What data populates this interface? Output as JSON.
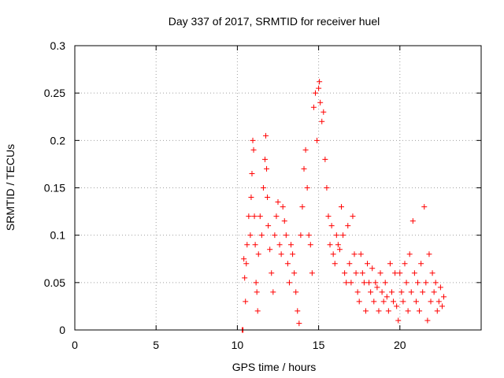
{
  "chart_data": {
    "type": "scatter",
    "title": "Day 337 of 2017, SRMTID for receiver huel",
    "xlabel": "GPS time / hours",
    "ylabel": "SRMTID / TECUs",
    "xlim": [
      0,
      25
    ],
    "ylim": [
      0,
      0.3
    ],
    "xticks": [
      0,
      5,
      10,
      15,
      20
    ],
    "yticks": [
      0,
      0.05,
      0.1,
      0.15,
      0.2,
      0.25,
      0.3
    ],
    "xtick_labels": [
      "0",
      "5",
      "10",
      "15",
      "20"
    ],
    "ytick_labels": [
      "0",
      "0.05",
      "0.1",
      "0.15",
      "0.2",
      "0.25",
      "0.3"
    ],
    "grid": true,
    "marker": "+",
    "series": [
      {
        "name": "SRMTID",
        "color": "#ff0000",
        "points": [
          [
            10.3,
            0.0
          ],
          [
            10.35,
            0.0
          ],
          [
            10.4,
            0.075
          ],
          [
            10.45,
            0.055
          ],
          [
            10.5,
            0.03
          ],
          [
            10.55,
            0.07
          ],
          [
            10.6,
            0.09
          ],
          [
            10.7,
            0.12
          ],
          [
            10.8,
            0.1
          ],
          [
            10.85,
            0.14
          ],
          [
            10.9,
            0.165
          ],
          [
            10.95,
            0.2
          ],
          [
            11.0,
            0.19
          ],
          [
            11.05,
            0.12
          ],
          [
            11.1,
            0.09
          ],
          [
            11.15,
            0.05
          ],
          [
            11.2,
            0.04
          ],
          [
            11.25,
            0.02
          ],
          [
            11.3,
            0.08
          ],
          [
            11.4,
            0.12
          ],
          [
            11.5,
            0.1
          ],
          [
            11.6,
            0.15
          ],
          [
            11.7,
            0.18
          ],
          [
            11.75,
            0.205
          ],
          [
            11.8,
            0.17
          ],
          [
            11.85,
            0.14
          ],
          [
            11.9,
            0.11
          ],
          [
            12.0,
            0.085
          ],
          [
            12.1,
            0.06
          ],
          [
            12.2,
            0.04
          ],
          [
            12.3,
            0.1
          ],
          [
            12.4,
            0.12
          ],
          [
            12.5,
            0.135
          ],
          [
            12.6,
            0.09
          ],
          [
            12.7,
            0.08
          ],
          [
            12.8,
            0.13
          ],
          [
            12.9,
            0.115
          ],
          [
            13.0,
            0.1
          ],
          [
            13.1,
            0.07
          ],
          [
            13.2,
            0.05
          ],
          [
            13.3,
            0.09
          ],
          [
            13.4,
            0.08
          ],
          [
            13.5,
            0.06
          ],
          [
            13.6,
            0.04
          ],
          [
            13.7,
            0.02
          ],
          [
            13.8,
            0.007
          ],
          [
            13.9,
            0.1
          ],
          [
            14.0,
            0.13
          ],
          [
            14.1,
            0.17
          ],
          [
            14.2,
            0.19
          ],
          [
            14.3,
            0.15
          ],
          [
            14.4,
            0.1
          ],
          [
            14.5,
            0.09
          ],
          [
            14.6,
            0.06
          ],
          [
            14.7,
            0.235
          ],
          [
            14.8,
            0.25
          ],
          [
            14.9,
            0.2
          ],
          [
            15.0,
            0.255
          ],
          [
            15.05,
            0.262
          ],
          [
            15.1,
            0.24
          ],
          [
            15.2,
            0.22
          ],
          [
            15.3,
            0.23
          ],
          [
            15.4,
            0.18
          ],
          [
            15.5,
            0.15
          ],
          [
            15.6,
            0.12
          ],
          [
            15.7,
            0.09
          ],
          [
            15.8,
            0.11
          ],
          [
            15.9,
            0.08
          ],
          [
            16.0,
            0.07
          ],
          [
            16.1,
            0.1
          ],
          [
            16.2,
            0.09
          ],
          [
            16.3,
            0.085
          ],
          [
            16.4,
            0.13
          ],
          [
            16.5,
            0.1
          ],
          [
            16.6,
            0.06
          ],
          [
            16.7,
            0.05
          ],
          [
            16.8,
            0.11
          ],
          [
            16.9,
            0.07
          ],
          [
            17.0,
            0.05
          ],
          [
            17.1,
            0.12
          ],
          [
            17.2,
            0.08
          ],
          [
            17.3,
            0.06
          ],
          [
            17.4,
            0.04
          ],
          [
            17.5,
            0.03
          ],
          [
            17.6,
            0.08
          ],
          [
            17.7,
            0.06
          ],
          [
            17.8,
            0.05
          ],
          [
            17.9,
            0.02
          ],
          [
            18.0,
            0.07
          ],
          [
            18.1,
            0.05
          ],
          [
            18.2,
            0.04
          ],
          [
            18.3,
            0.065
          ],
          [
            18.4,
            0.03
          ],
          [
            18.5,
            0.05
          ],
          [
            18.6,
            0.045
          ],
          [
            18.7,
            0.02
          ],
          [
            18.8,
            0.06
          ],
          [
            18.9,
            0.04
          ],
          [
            19.0,
            0.03
          ],
          [
            19.1,
            0.05
          ],
          [
            19.2,
            0.035
          ],
          [
            19.3,
            0.02
          ],
          [
            19.4,
            0.07
          ],
          [
            19.5,
            0.04
          ],
          [
            19.6,
            0.03
          ],
          [
            19.7,
            0.06
          ],
          [
            19.8,
            0.025
          ],
          [
            19.9,
            0.01
          ],
          [
            20.0,
            0.06
          ],
          [
            20.1,
            0.04
          ],
          [
            20.2,
            0.03
          ],
          [
            20.3,
            0.07
          ],
          [
            20.4,
            0.05
          ],
          [
            20.5,
            0.02
          ],
          [
            20.6,
            0.08
          ],
          [
            20.7,
            0.04
          ],
          [
            20.8,
            0.115
          ],
          [
            20.9,
            0.06
          ],
          [
            21.0,
            0.03
          ],
          [
            21.1,
            0.05
          ],
          [
            21.2,
            0.02
          ],
          [
            21.3,
            0.07
          ],
          [
            21.4,
            0.04
          ],
          [
            21.5,
            0.13
          ],
          [
            21.6,
            0.05
          ],
          [
            21.7,
            0.01
          ],
          [
            21.8,
            0.08
          ],
          [
            21.9,
            0.03
          ],
          [
            22.0,
            0.06
          ],
          [
            22.1,
            0.04
          ],
          [
            22.2,
            0.05
          ],
          [
            22.3,
            0.02
          ],
          [
            22.4,
            0.03
          ],
          [
            22.5,
            0.045
          ],
          [
            22.6,
            0.025
          ],
          [
            22.7,
            0.035
          ]
        ]
      }
    ]
  }
}
